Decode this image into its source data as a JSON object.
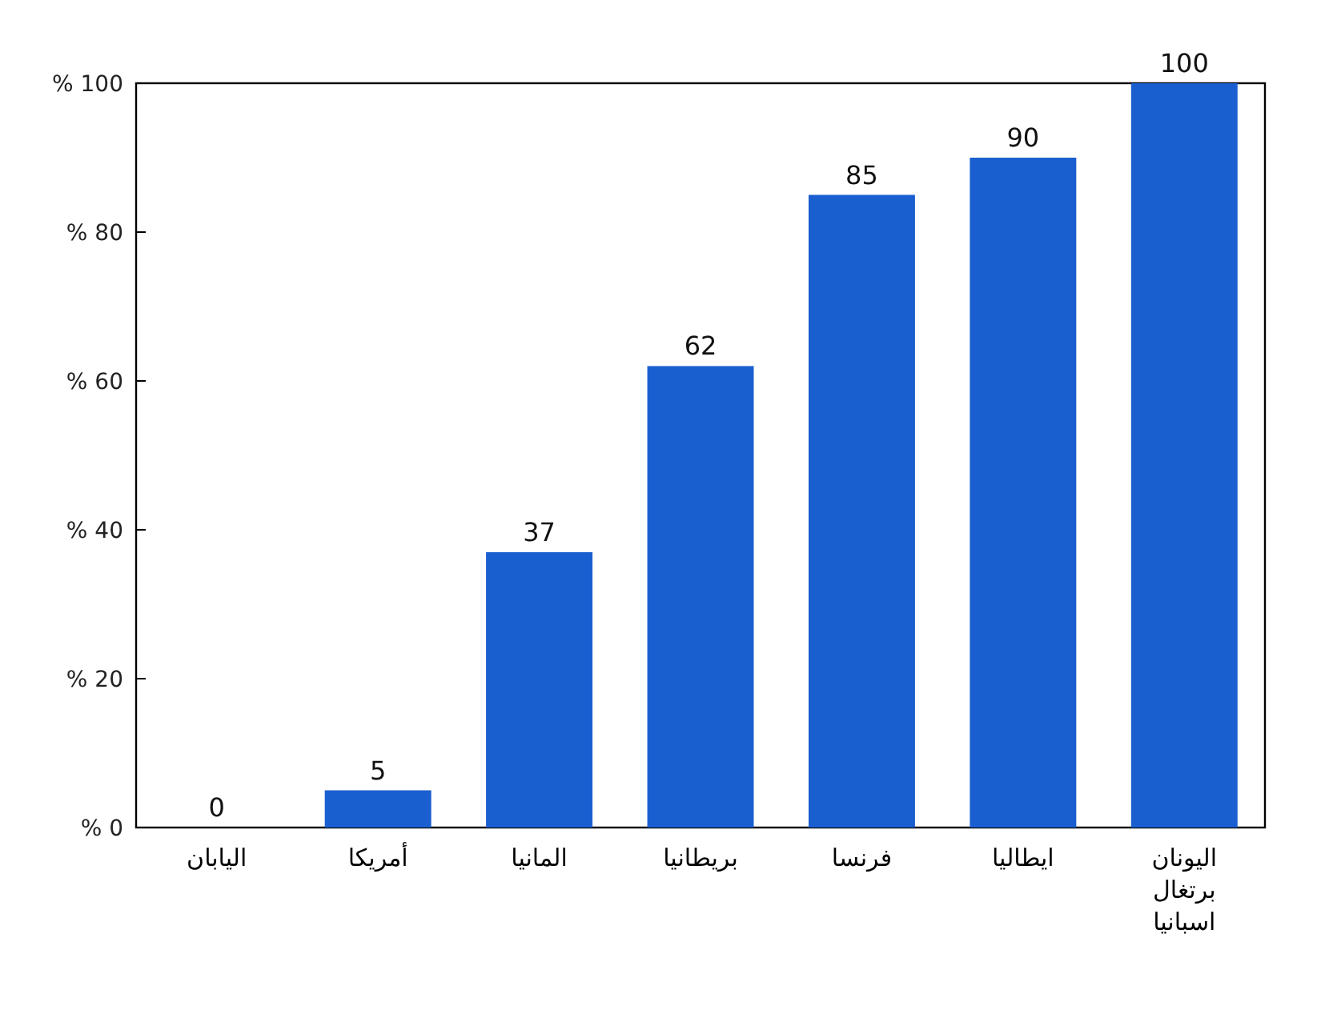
{
  "chart_data": {
    "type": "bar",
    "categories": [
      "اليابان",
      "أمريكا",
      "المانيا",
      "بريطانيا",
      "فرنسا",
      "ايطاليا",
      "اليونان\nبرتغال\nاسبانيا"
    ],
    "values": [
      0,
      5,
      37,
      62,
      85,
      90,
      100
    ],
    "color": "#1a5fd0",
    "ylim": [
      0,
      100
    ],
    "yticks": [
      {
        "value": 0,
        "label": "% 0"
      },
      {
        "value": 20,
        "label": "% 20"
      },
      {
        "value": 40,
        "label": "% 40"
      },
      {
        "value": 60,
        "label": "% 60"
      },
      {
        "value": 80,
        "label": "% 80"
      },
      {
        "value": 100,
        "label": "% 100"
      }
    ],
    "data_labels": true
  }
}
